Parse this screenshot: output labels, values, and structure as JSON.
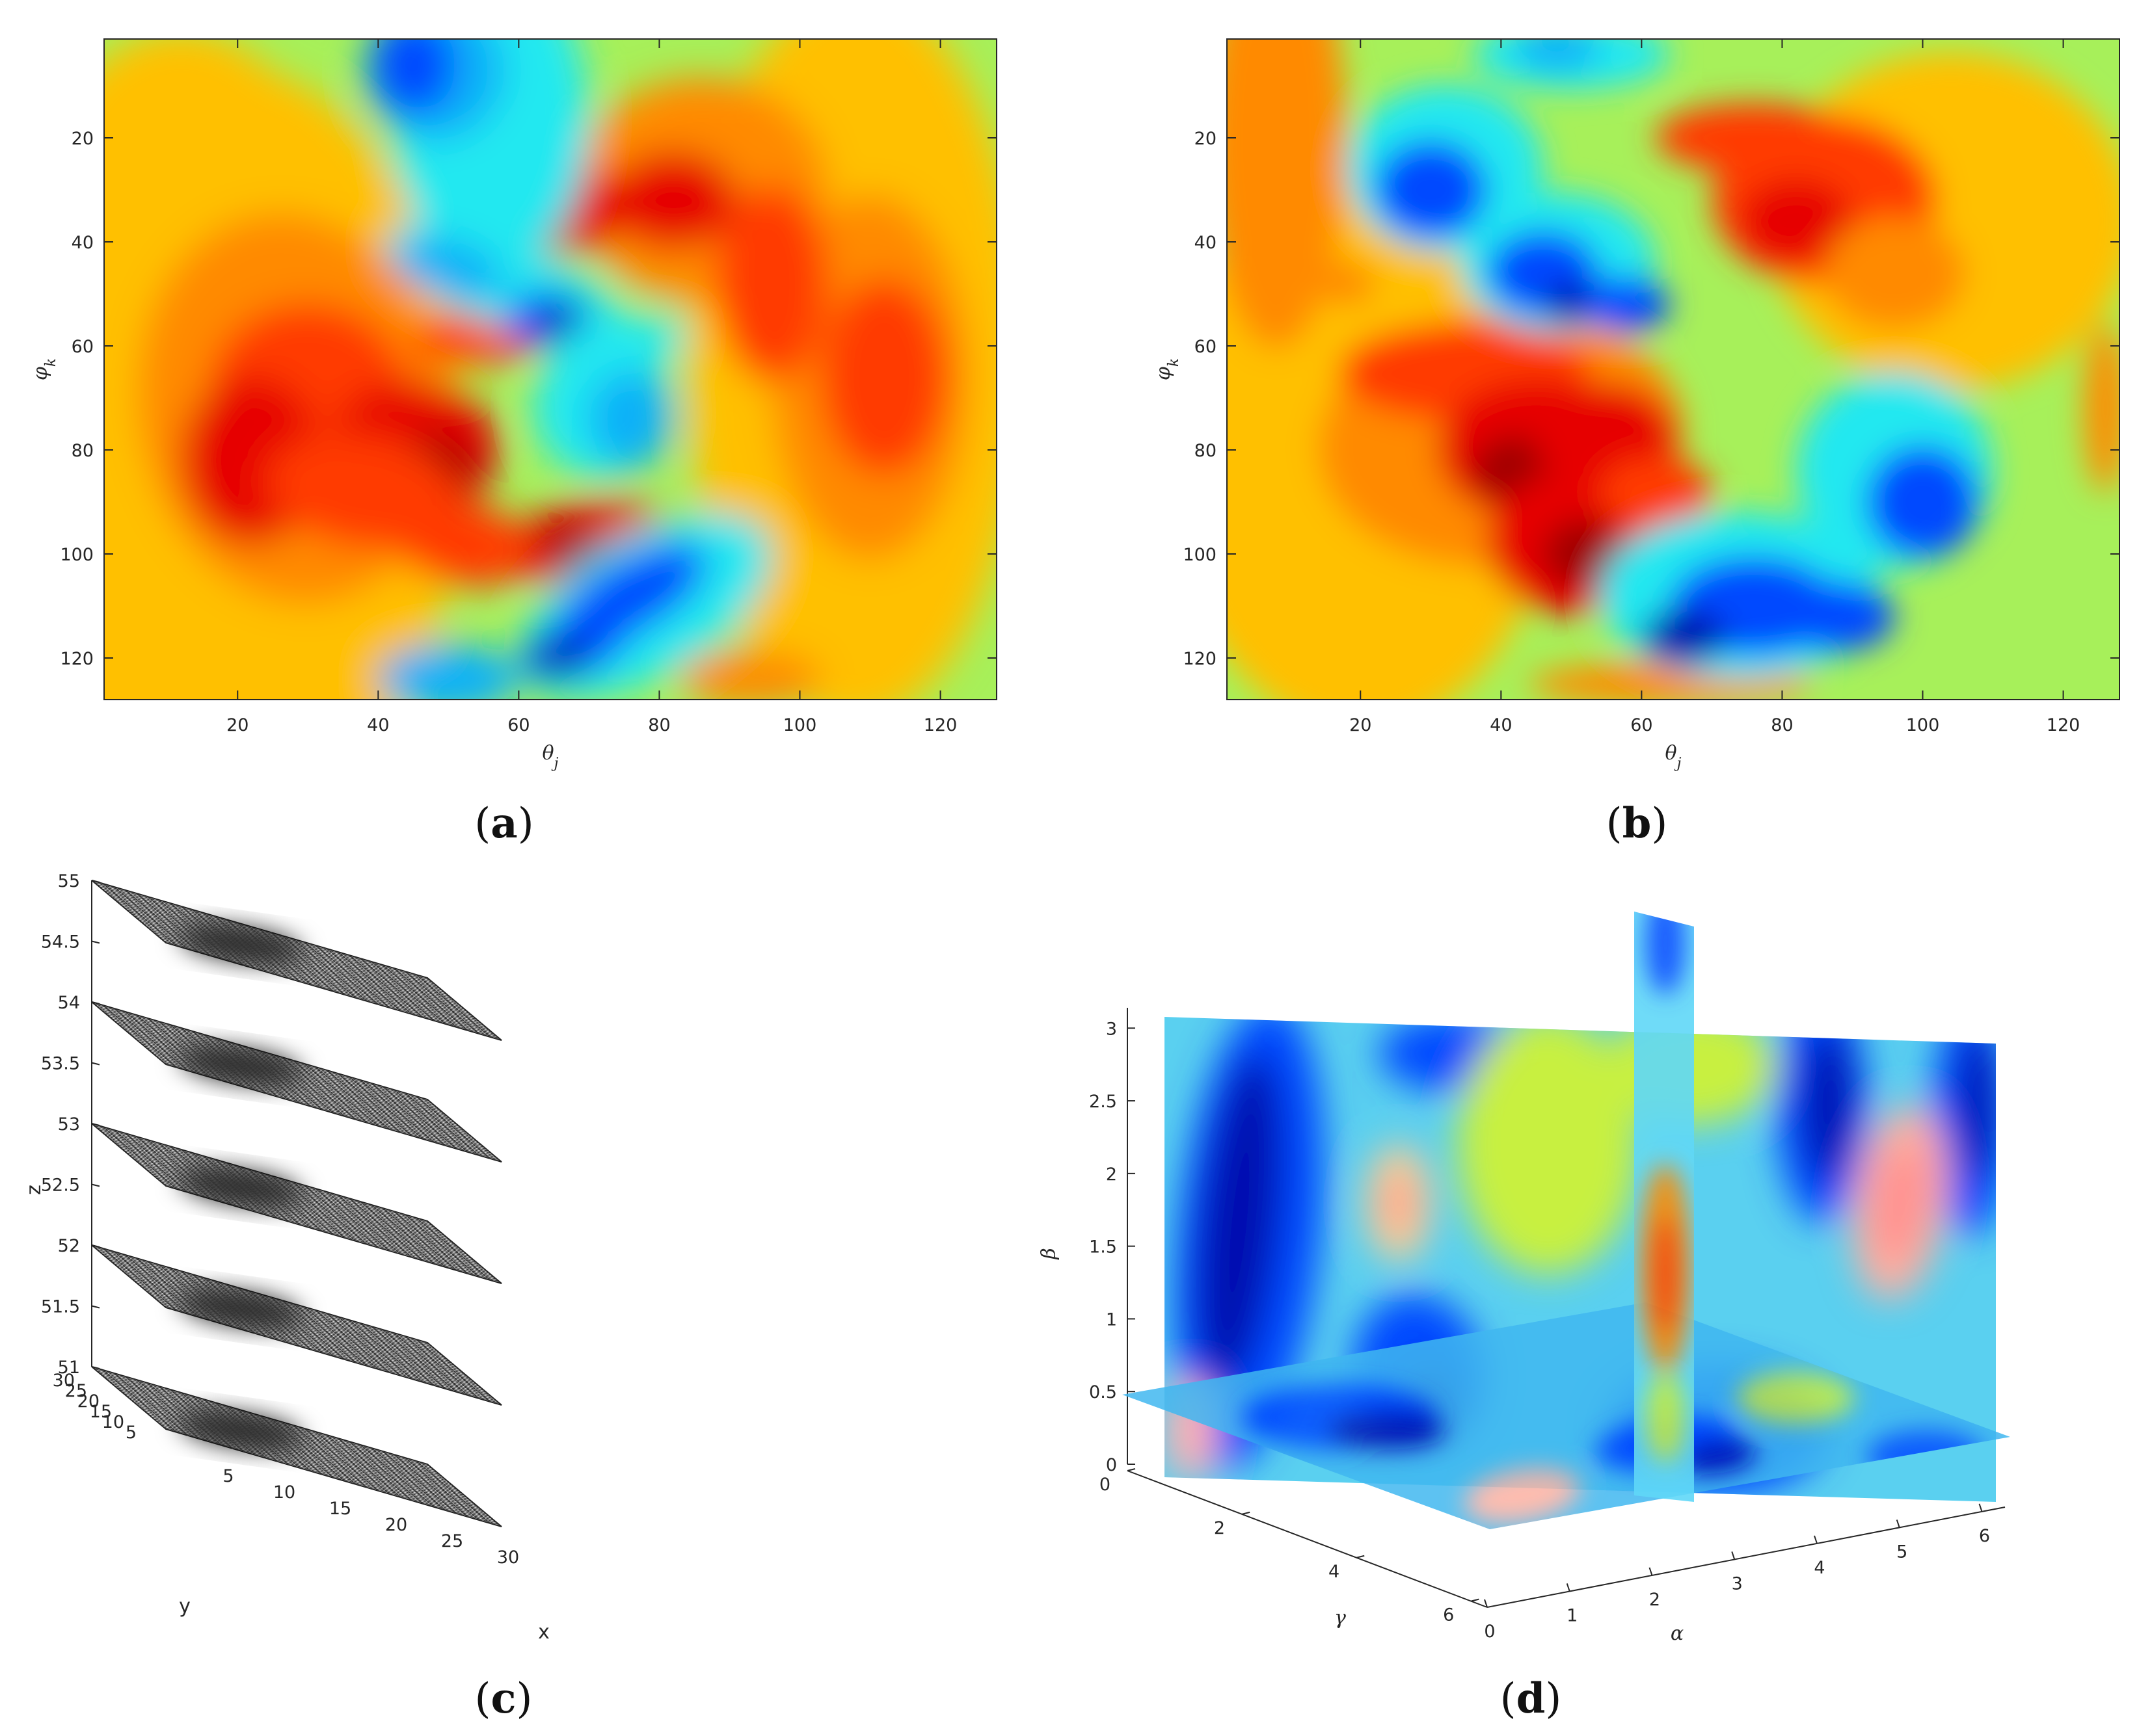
{
  "chart_data": [
    {
      "panel": "(a)",
      "type": "heatmap",
      "colormap": "jet",
      "xlabel": "θj",
      "ylabel": "φk",
      "xlim": [
        1,
        128
      ],
      "ylim": [
        1,
        128
      ],
      "y_direction": "reversed",
      "xticks": [
        20,
        40,
        60,
        80,
        100,
        120
      ],
      "yticks": [
        20,
        40,
        60,
        80,
        100,
        120
      ],
      "features": [
        {
          "kind": "low",
          "x": 45,
          "y": 5
        },
        {
          "kind": "low",
          "x": 60,
          "y": 50
        },
        {
          "kind": "low",
          "x": 75,
          "y": 70
        },
        {
          "kind": "low",
          "x": 70,
          "y": 110
        },
        {
          "kind": "high",
          "x": 62,
          "y": 35
        },
        {
          "kind": "high",
          "x": 82,
          "y": 32
        },
        {
          "kind": "high",
          "x": 30,
          "y": 70
        },
        {
          "kind": "high",
          "x": 45,
          "y": 82
        },
        {
          "kind": "high",
          "x": 68,
          "y": 98
        },
        {
          "kind": "high",
          "x": 110,
          "y": 65
        }
      ]
    },
    {
      "panel": "(b)",
      "type": "heatmap",
      "colormap": "jet",
      "xlabel": "θj",
      "ylabel": "φk",
      "xlim": [
        1,
        128
      ],
      "ylim": [
        1,
        128
      ],
      "y_direction": "reversed",
      "xticks": [
        20,
        40,
        60,
        80,
        100,
        120
      ],
      "yticks": [
        20,
        40,
        60,
        80,
        100,
        120
      ],
      "features": [
        {
          "kind": "low",
          "x": 32,
          "y": 30
        },
        {
          "kind": "low",
          "x": 50,
          "y": 48
        },
        {
          "kind": "low",
          "x": 100,
          "y": 90
        },
        {
          "kind": "low",
          "x": 72,
          "y": 112
        },
        {
          "kind": "high",
          "x": 85,
          "y": 35
        },
        {
          "kind": "high",
          "x": 42,
          "y": 82
        },
        {
          "kind": "high",
          "x": 58,
          "y": 80
        },
        {
          "kind": "high",
          "x": 50,
          "y": 100
        },
        {
          "kind": "high",
          "x": 30,
          "y": 65
        }
      ]
    },
    {
      "panel": "(c)",
      "type": "surface",
      "style": "stacked mesh planes",
      "xlabel": "x",
      "ylabel": "y",
      "zlabel": "z",
      "xlim": [
        0,
        30
      ],
      "ylim": [
        0,
        30
      ],
      "zlim": [
        51,
        55
      ],
      "xticks": [
        5,
        10,
        15,
        20,
        25,
        30
      ],
      "yticks": [
        5,
        10,
        15,
        20,
        25,
        30
      ],
      "zticks": [
        "51",
        "51.5",
        "52",
        "52.5",
        "53",
        "53.5",
        "54",
        "54.5",
        "55"
      ],
      "z_levels": [
        51,
        52,
        53,
        54,
        55
      ],
      "dark_spot_center": {
        "x": 10,
        "y": 15
      }
    },
    {
      "panel": "(d)",
      "type": "heatmap",
      "style": "3D orthogonal slices",
      "colormap": "jet",
      "xlabel": "α",
      "ylabel": "γ",
      "zlabel": "β",
      "xlim": [
        0,
        6.28
      ],
      "ylim": [
        0,
        6.28
      ],
      "zlim": [
        0,
        3.14
      ],
      "xticks": [
        0,
        1,
        2,
        3,
        4,
        5,
        6
      ],
      "yticks": [
        0,
        2,
        4,
        6
      ],
      "zticks": [
        "0",
        "0.5",
        "1",
        "1.5",
        "2",
        "2.5",
        "3"
      ]
    }
  ],
  "captions": [
    "a",
    "b",
    "c",
    "d"
  ]
}
